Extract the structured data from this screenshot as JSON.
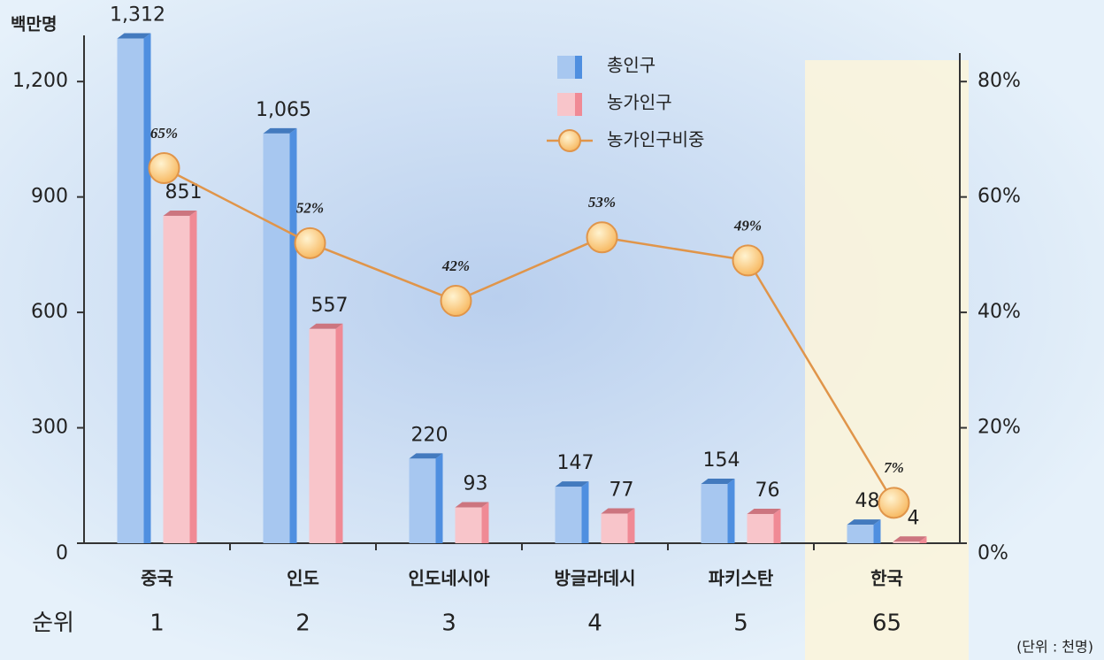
{
  "chart_data": {
    "type": "bar",
    "y_label": "백만명",
    "categories": [
      "중국",
      "인도",
      "인도네시아",
      "방글라데시",
      "파키스탄",
      "한국"
    ],
    "rank_label": "순위",
    "ranks": [
      1,
      2,
      3,
      4,
      5,
      65
    ],
    "unit_note": "(단위 : 천명)",
    "highlight_index": 5,
    "series": [
      {
        "name": "총인구",
        "type": "bar",
        "color": "#4f8fe0",
        "values": [
          1312,
          1065,
          220,
          147,
          154,
          48
        ],
        "value_labels": [
          "1,312",
          "1,065",
          "220",
          "147",
          "154",
          "48"
        ]
      },
      {
        "name": "농가인구",
        "type": "bar",
        "color": "#f08a95",
        "values": [
          851,
          557,
          93,
          77,
          76,
          4
        ],
        "value_labels": [
          "851",
          "557",
          "93",
          "77",
          "76",
          "4"
        ]
      },
      {
        "name": "농가인구비중",
        "type": "line",
        "axis": "y2",
        "color": "#e0954a",
        "values": [
          65,
          52,
          42,
          53,
          49,
          7
        ],
        "value_labels": [
          "65%",
          "52%",
          "42%",
          "53%",
          "49%",
          "7%"
        ]
      }
    ],
    "ylim": [
      0,
      1320
    ],
    "yticks": [
      0,
      300,
      600,
      900,
      {
        "value": 1200,
        "label": "1,200"
      }
    ],
    "y2lim": [
      0,
      88
    ],
    "y2ticks": [
      {
        "value": 0,
        "label": "0%"
      },
      {
        "value": 20,
        "label": "20%"
      },
      {
        "value": 40,
        "label": "40%"
      },
      {
        "value": 60,
        "label": "60%"
      },
      {
        "value": 80,
        "label": "80%"
      }
    ]
  }
}
